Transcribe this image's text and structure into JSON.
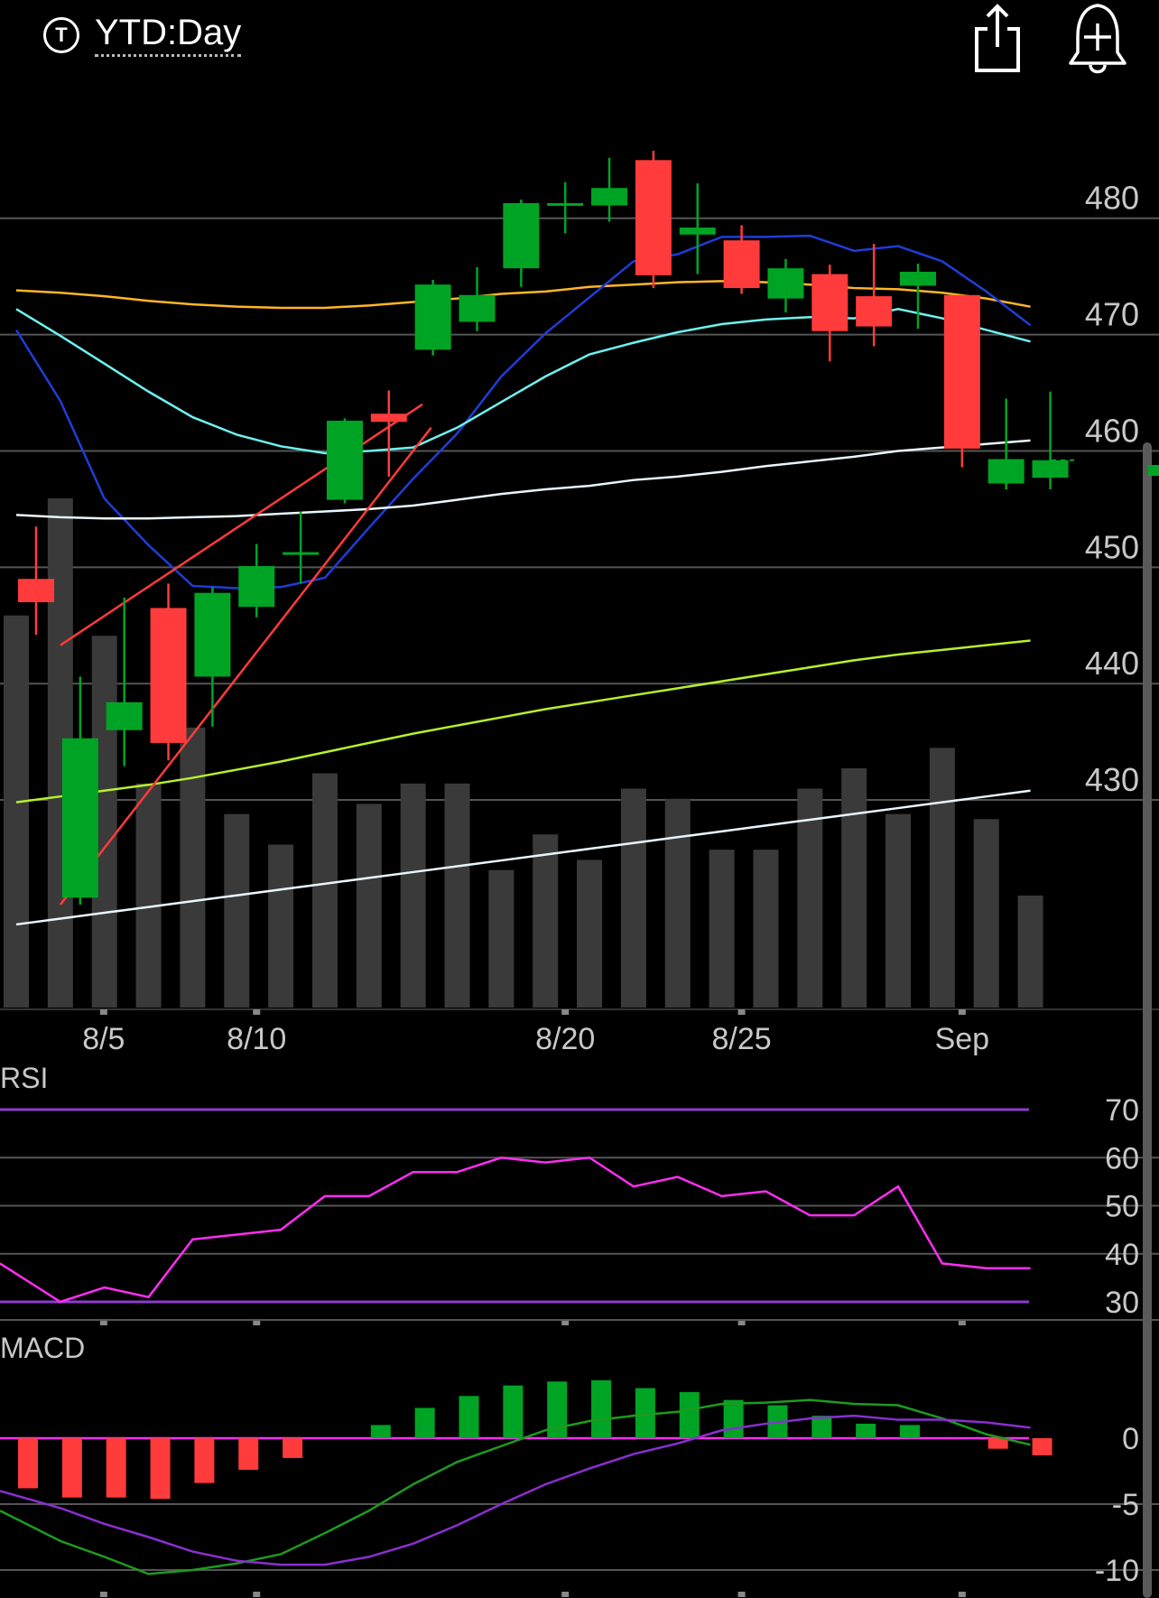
{
  "header": {
    "period_icon_letter": "T",
    "period_label": "YTD:Day",
    "share_icon": "share-icon",
    "alert_icon": "add-alert-bell-icon"
  },
  "colors": {
    "up": "#00a424",
    "down": "#ff3b3b",
    "volume": "#3a3a3a",
    "ma_orange": "#ffb627",
    "ma_blue": "#1f3dd6",
    "ma_cyan": "#6ef2ee",
    "ma_white": "#e8f6ff",
    "ma_lime": "#b6f02a",
    "trendline": "#ff3b3b",
    "rsi_line": "#ff2ef2",
    "rsi_bounds": "#8e3bcf",
    "macd_line": "#1e9a1e",
    "macd_signal": "#8a2fd0",
    "grid": "#555555",
    "axis_text": "#c8c8c8"
  },
  "chart_data": [
    {
      "type": "candlestick",
      "panel": "price",
      "ylim": [
        412,
        491
      ],
      "y_ticks": [
        430,
        440,
        450,
        460,
        470,
        480
      ],
      "x_tick_labels": [
        {
          "label": "8/5",
          "index": 1
        },
        {
          "label": "8/10",
          "index": 5
        },
        {
          "label": "8/20",
          "index": 12
        },
        {
          "label": "8/25",
          "index": 16
        },
        {
          "label": "Sep",
          "index": 21
        }
      ],
      "candles": [
        {
          "open": 449.0,
          "high": 453.5,
          "low": 444.2,
          "close": 447.0
        },
        {
          "open": 421.6,
          "high": 440.6,
          "low": 421.0,
          "close": 435.3
        },
        {
          "open": 436.0,
          "high": 447.4,
          "low": 432.9,
          "close": 438.4
        },
        {
          "open": 446.5,
          "high": 448.6,
          "low": 433.4,
          "close": 434.9
        },
        {
          "open": 440.6,
          "high": 448.3,
          "low": 436.3,
          "close": 447.8
        },
        {
          "open": 446.6,
          "high": 452.0,
          "low": 445.7,
          "close": 450.1
        },
        {
          "open": 451.3,
          "high": 454.8,
          "low": 448.6,
          "close": 451.3
        },
        {
          "open": 455.8,
          "high": 462.8,
          "low": 455.5,
          "close": 462.6
        },
        {
          "open": 463.2,
          "high": 465.2,
          "low": 457.8,
          "close": 462.5
        },
        {
          "open": 468.7,
          "high": 474.7,
          "low": 468.2,
          "close": 474.3
        },
        {
          "open": 471.1,
          "high": 475.8,
          "low": 470.3,
          "close": 473.4
        },
        {
          "open": 475.7,
          "high": 481.6,
          "low": 474.1,
          "close": 481.3
        },
        {
          "open": 481.3,
          "high": 483.1,
          "low": 478.7,
          "close": 481.3
        },
        {
          "open": 481.1,
          "high": 485.2,
          "low": 479.7,
          "close": 482.6
        },
        {
          "open": 485.0,
          "high": 485.8,
          "low": 474.0,
          "close": 475.1
        },
        {
          "open": 478.6,
          "high": 483.0,
          "low": 475.2,
          "close": 479.2
        },
        {
          "open": 478.1,
          "high": 479.4,
          "low": 473.5,
          "close": 474.0
        },
        {
          "open": 473.1,
          "high": 476.5,
          "low": 471.9,
          "close": 475.7
        },
        {
          "open": 475.2,
          "high": 476.0,
          "low": 467.7,
          "close": 470.3
        },
        {
          "open": 473.3,
          "high": 477.8,
          "low": 469.0,
          "close": 470.7
        },
        {
          "open": 474.2,
          "high": 476.1,
          "low": 470.5,
          "close": 475.4
        },
        {
          "open": 473.4,
          "high": 473.4,
          "low": 458.6,
          "close": 460.2
        },
        {
          "open": 457.2,
          "high": 464.5,
          "low": 456.7,
          "close": 459.3
        },
        {
          "open": 457.7,
          "high": 465.1,
          "low": 456.7,
          "close": 459.2
        }
      ],
      "moving_averages": [
        {
          "color_key": "ma_orange",
          "values": [
            473.8,
            473.6,
            473.3,
            472.9,
            472.6,
            472.4,
            472.3,
            472.3,
            472.5,
            472.8,
            473.1,
            473.5,
            473.7,
            474.1,
            474.3,
            474.5,
            474.6,
            474.5,
            474.3,
            474.0,
            473.9,
            473.6,
            473.1,
            472.4
          ]
        },
        {
          "color_key": "ma_blue",
          "values": [
            470.4,
            464.3,
            455.9,
            451.9,
            448.4,
            448.2,
            448.3,
            449.1,
            453.4,
            457.6,
            461.5,
            466.4,
            470.1,
            473.2,
            476.3,
            476.9,
            478.4,
            478.4,
            478.5,
            477.2,
            477.6,
            476.3,
            473.7,
            470.8
          ]
        },
        {
          "color_key": "ma_cyan",
          "values": [
            472.2,
            469.9,
            467.5,
            465.1,
            462.9,
            461.4,
            460.4,
            459.8,
            460.0,
            460.3,
            462.0,
            464.2,
            466.4,
            468.3,
            469.3,
            470.2,
            470.9,
            471.3,
            471.5,
            471.4,
            472.2,
            471.4,
            470.4,
            469.4
          ]
        },
        {
          "color_key": "ma_white",
          "values": [
            454.5,
            454.3,
            454.2,
            454.2,
            454.3,
            454.4,
            454.6,
            454.8,
            455.0,
            455.3,
            455.8,
            456.3,
            456.7,
            457.0,
            457.5,
            457.8,
            458.2,
            458.7,
            459.1,
            459.5,
            460.0,
            460.3,
            460.6,
            460.9
          ]
        },
        {
          "color_key": "ma_lime",
          "values": [
            429.8,
            430.3,
            430.8,
            431.3,
            431.9,
            432.6,
            433.3,
            434.1,
            434.9,
            435.7,
            436.4,
            437.1,
            437.8,
            438.4,
            439.0,
            439.6,
            440.2,
            440.8,
            441.4,
            442.0,
            442.5,
            442.9,
            443.3,
            443.7
          ]
        },
        {
          "color_key": "ma_white",
          "values": [
            419.3,
            419.8,
            420.3,
            420.8,
            421.3,
            421.8,
            422.3,
            422.8,
            423.3,
            423.8,
            424.3,
            424.8,
            425.3,
            425.8,
            426.3,
            426.8,
            427.3,
            427.8,
            428.3,
            428.8,
            429.3,
            429.8,
            430.3,
            430.8
          ]
        }
      ],
      "volume_relative": [
        0.77,
        1.0,
        0.73,
        0.44,
        0.55,
        0.38,
        0.32,
        0.46,
        0.4,
        0.44,
        0.44,
        0.27,
        0.34,
        0.29,
        0.43,
        0.41,
        0.31,
        0.31,
        0.43,
        0.47,
        0.38,
        0.51,
        0.37,
        0.22
      ]
    },
    {
      "type": "line",
      "panel": "RSI",
      "title": "RSI",
      "ylim": [
        25,
        75
      ],
      "y_ticks": [
        30,
        40,
        50,
        60,
        70
      ],
      "bounds": [
        70,
        30
      ],
      "values": [
        38,
        30,
        33,
        31,
        43,
        44,
        45,
        52,
        52,
        57,
        57,
        60,
        59,
        60,
        54,
        56,
        52,
        53,
        48,
        48,
        54,
        38,
        37,
        37
      ]
    },
    {
      "type": "bar+line",
      "panel": "MACD",
      "title": "MACD",
      "ylim": [
        -12,
        4
      ],
      "y_ticks": [
        0,
        -5,
        -10
      ],
      "histogram": [
        -3.8,
        -4.5,
        -4.5,
        -4.6,
        -3.4,
        -2.4,
        -1.5,
        0,
        1.0,
        2.3,
        3.2,
        4.0,
        4.3,
        4.4,
        3.8,
        3.5,
        2.9,
        2.5,
        1.7,
        1.1,
        1.0,
        0,
        -0.8,
        -1.3
      ],
      "macd": [
        -5.5,
        -7.8,
        -9.0,
        -10.3,
        -10.0,
        -9.5,
        -8.8,
        -7.2,
        -5.5,
        -3.5,
        -1.8,
        -0.6,
        0.6,
        1.3,
        1.7,
        2.0,
        2.6,
        2.7,
        2.9,
        2.6,
        2.5,
        1.5,
        0.3,
        -0.5
      ],
      "signal": [
        -4.0,
        -5.3,
        -6.5,
        -7.5,
        -8.6,
        -9.3,
        -9.6,
        -9.6,
        -9.0,
        -8.0,
        -6.6,
        -5.0,
        -3.5,
        -2.3,
        -1.2,
        -0.4,
        0.6,
        1.1,
        1.5,
        1.7,
        1.4,
        1.4,
        1.2,
        0.8
      ]
    }
  ],
  "price_axis": {
    "labels": [
      "480",
      "470",
      "460",
      "450",
      "440",
      "430"
    ]
  },
  "rsi_axis": {
    "title": "RSI",
    "labels": [
      "70",
      "60",
      "50",
      "40",
      "30"
    ]
  },
  "macd_axis": {
    "title": "MACD",
    "labels": [
      "0",
      "-5",
      "-10"
    ]
  }
}
